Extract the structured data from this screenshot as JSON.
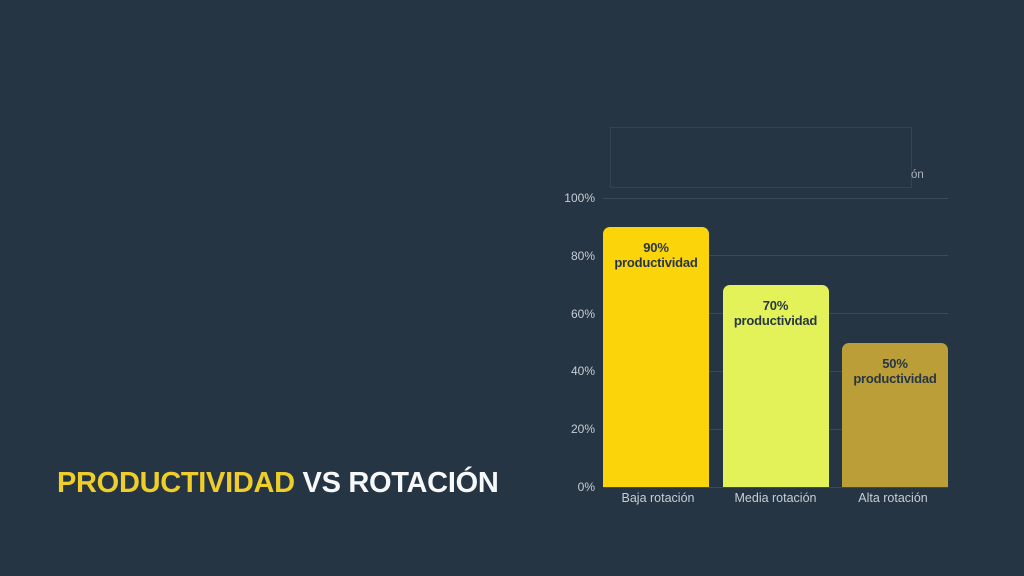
{
  "slide": {
    "background_color": "#263544",
    "title": {
      "accent_text": "PRODUCTIVIDAD",
      "rest_text": " VS ROTACIÓN",
      "accent_color": "#F0CE29",
      "rest_color": "#F6F8FA"
    }
  },
  "chart_data": {
    "type": "bar",
    "title": "",
    "clipped_text": "ón",
    "categories": [
      "Baja rotación",
      "Media rotación",
      "Alta rotación"
    ],
    "values": [
      90,
      70,
      50
    ],
    "bar_labels": [
      {
        "line1": "90%",
        "line2": "productividad"
      },
      {
        "line1": "70%",
        "line2": "productividad"
      },
      {
        "line1": "50%",
        "line2": "productividad"
      }
    ],
    "bar_colors": [
      "#FCD40A",
      "#E2F258",
      "#BB9E38"
    ],
    "xlabel": "",
    "ylabel": "",
    "ylim": [
      0,
      100
    ],
    "y_ticks": [
      0,
      20,
      40,
      60,
      80,
      100
    ],
    "y_tick_labels": [
      "0%",
      "20%",
      "40%",
      "60%",
      "80%",
      "100%"
    ],
    "grid": true,
    "legend_position": "none",
    "axis_label_color": "#C7CDD4",
    "bar_label_color": "#273645",
    "gridline_color": "rgba(255,255,255,0.10)"
  }
}
